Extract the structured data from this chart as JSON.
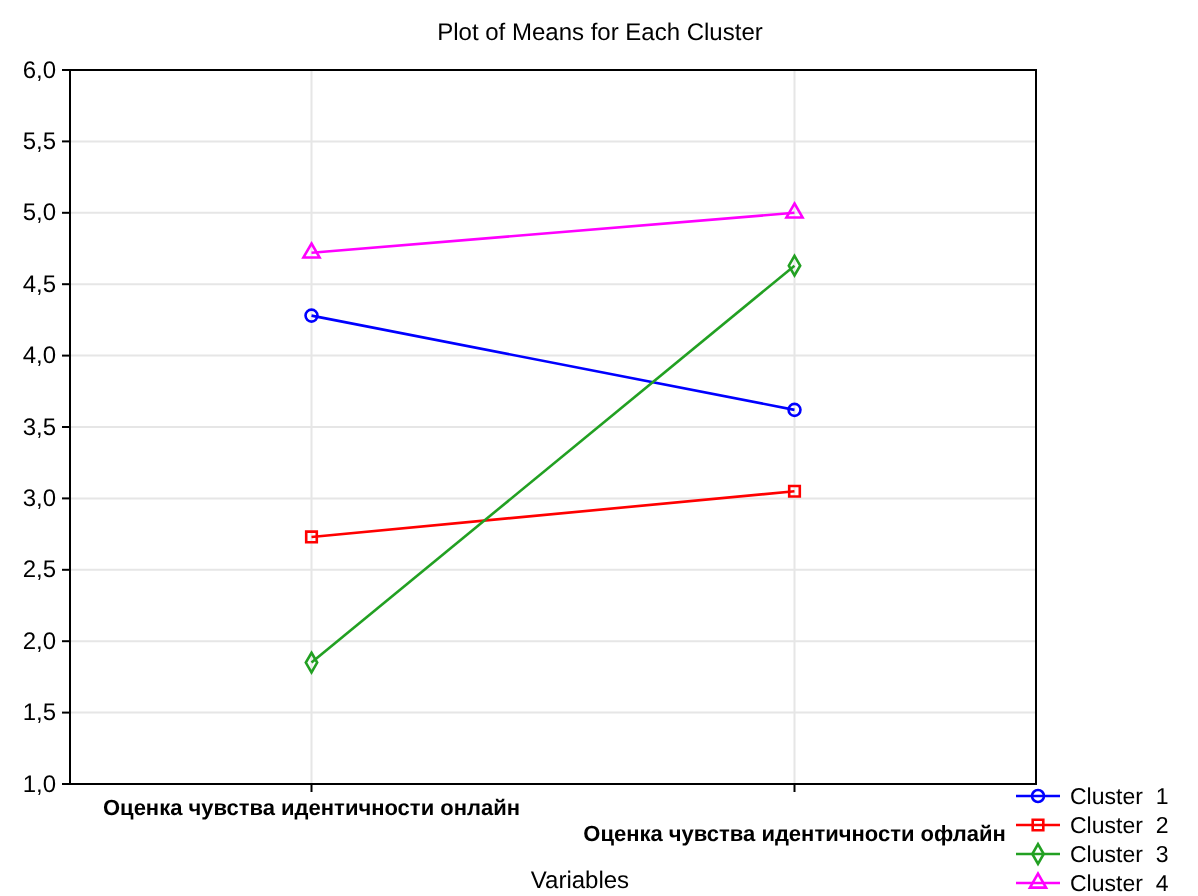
{
  "chart_data": {
    "type": "line",
    "title": "Plot of Means for Each Cluster",
    "xlabel": "Variables",
    "categories": [
      "Оценка чувства идентичности онлайн",
      "Оценка чувства идентичности офлайн"
    ],
    "ylim": [
      1,
      6
    ],
    "yticks": [
      {
        "value": 1,
        "label": "1,0"
      },
      {
        "value": 1.5,
        "label": "1,5"
      },
      {
        "value": 2,
        "label": "2,0"
      },
      {
        "value": 2.5,
        "label": "2,5"
      },
      {
        "value": 3,
        "label": "3,0"
      },
      {
        "value": 3.5,
        "label": "3,5"
      },
      {
        "value": 4,
        "label": "4,0"
      },
      {
        "value": 4.5,
        "label": "4,5"
      },
      {
        "value": 5,
        "label": "5,0"
      },
      {
        "value": 5.5,
        "label": "5,5"
      },
      {
        "value": 6,
        "label": "6,0"
      }
    ],
    "grid": true,
    "legend": "bottom right",
    "series": [
      {
        "name": "Cluster  1",
        "color": "#0000ff",
        "marker": "circle",
        "values": [
          4.28,
          3.62
        ]
      },
      {
        "name": "Cluster  2",
        "color": "#ff0000",
        "marker": "square",
        "values": [
          2.73,
          3.05
        ]
      },
      {
        "name": "Cluster  3",
        "color": "#22a022",
        "marker": "diamond",
        "values": [
          1.85,
          4.63
        ]
      },
      {
        "name": "Cluster  4",
        "color": "#ff00ff",
        "marker": "triangle",
        "values": [
          4.72,
          5.0
        ]
      }
    ]
  }
}
